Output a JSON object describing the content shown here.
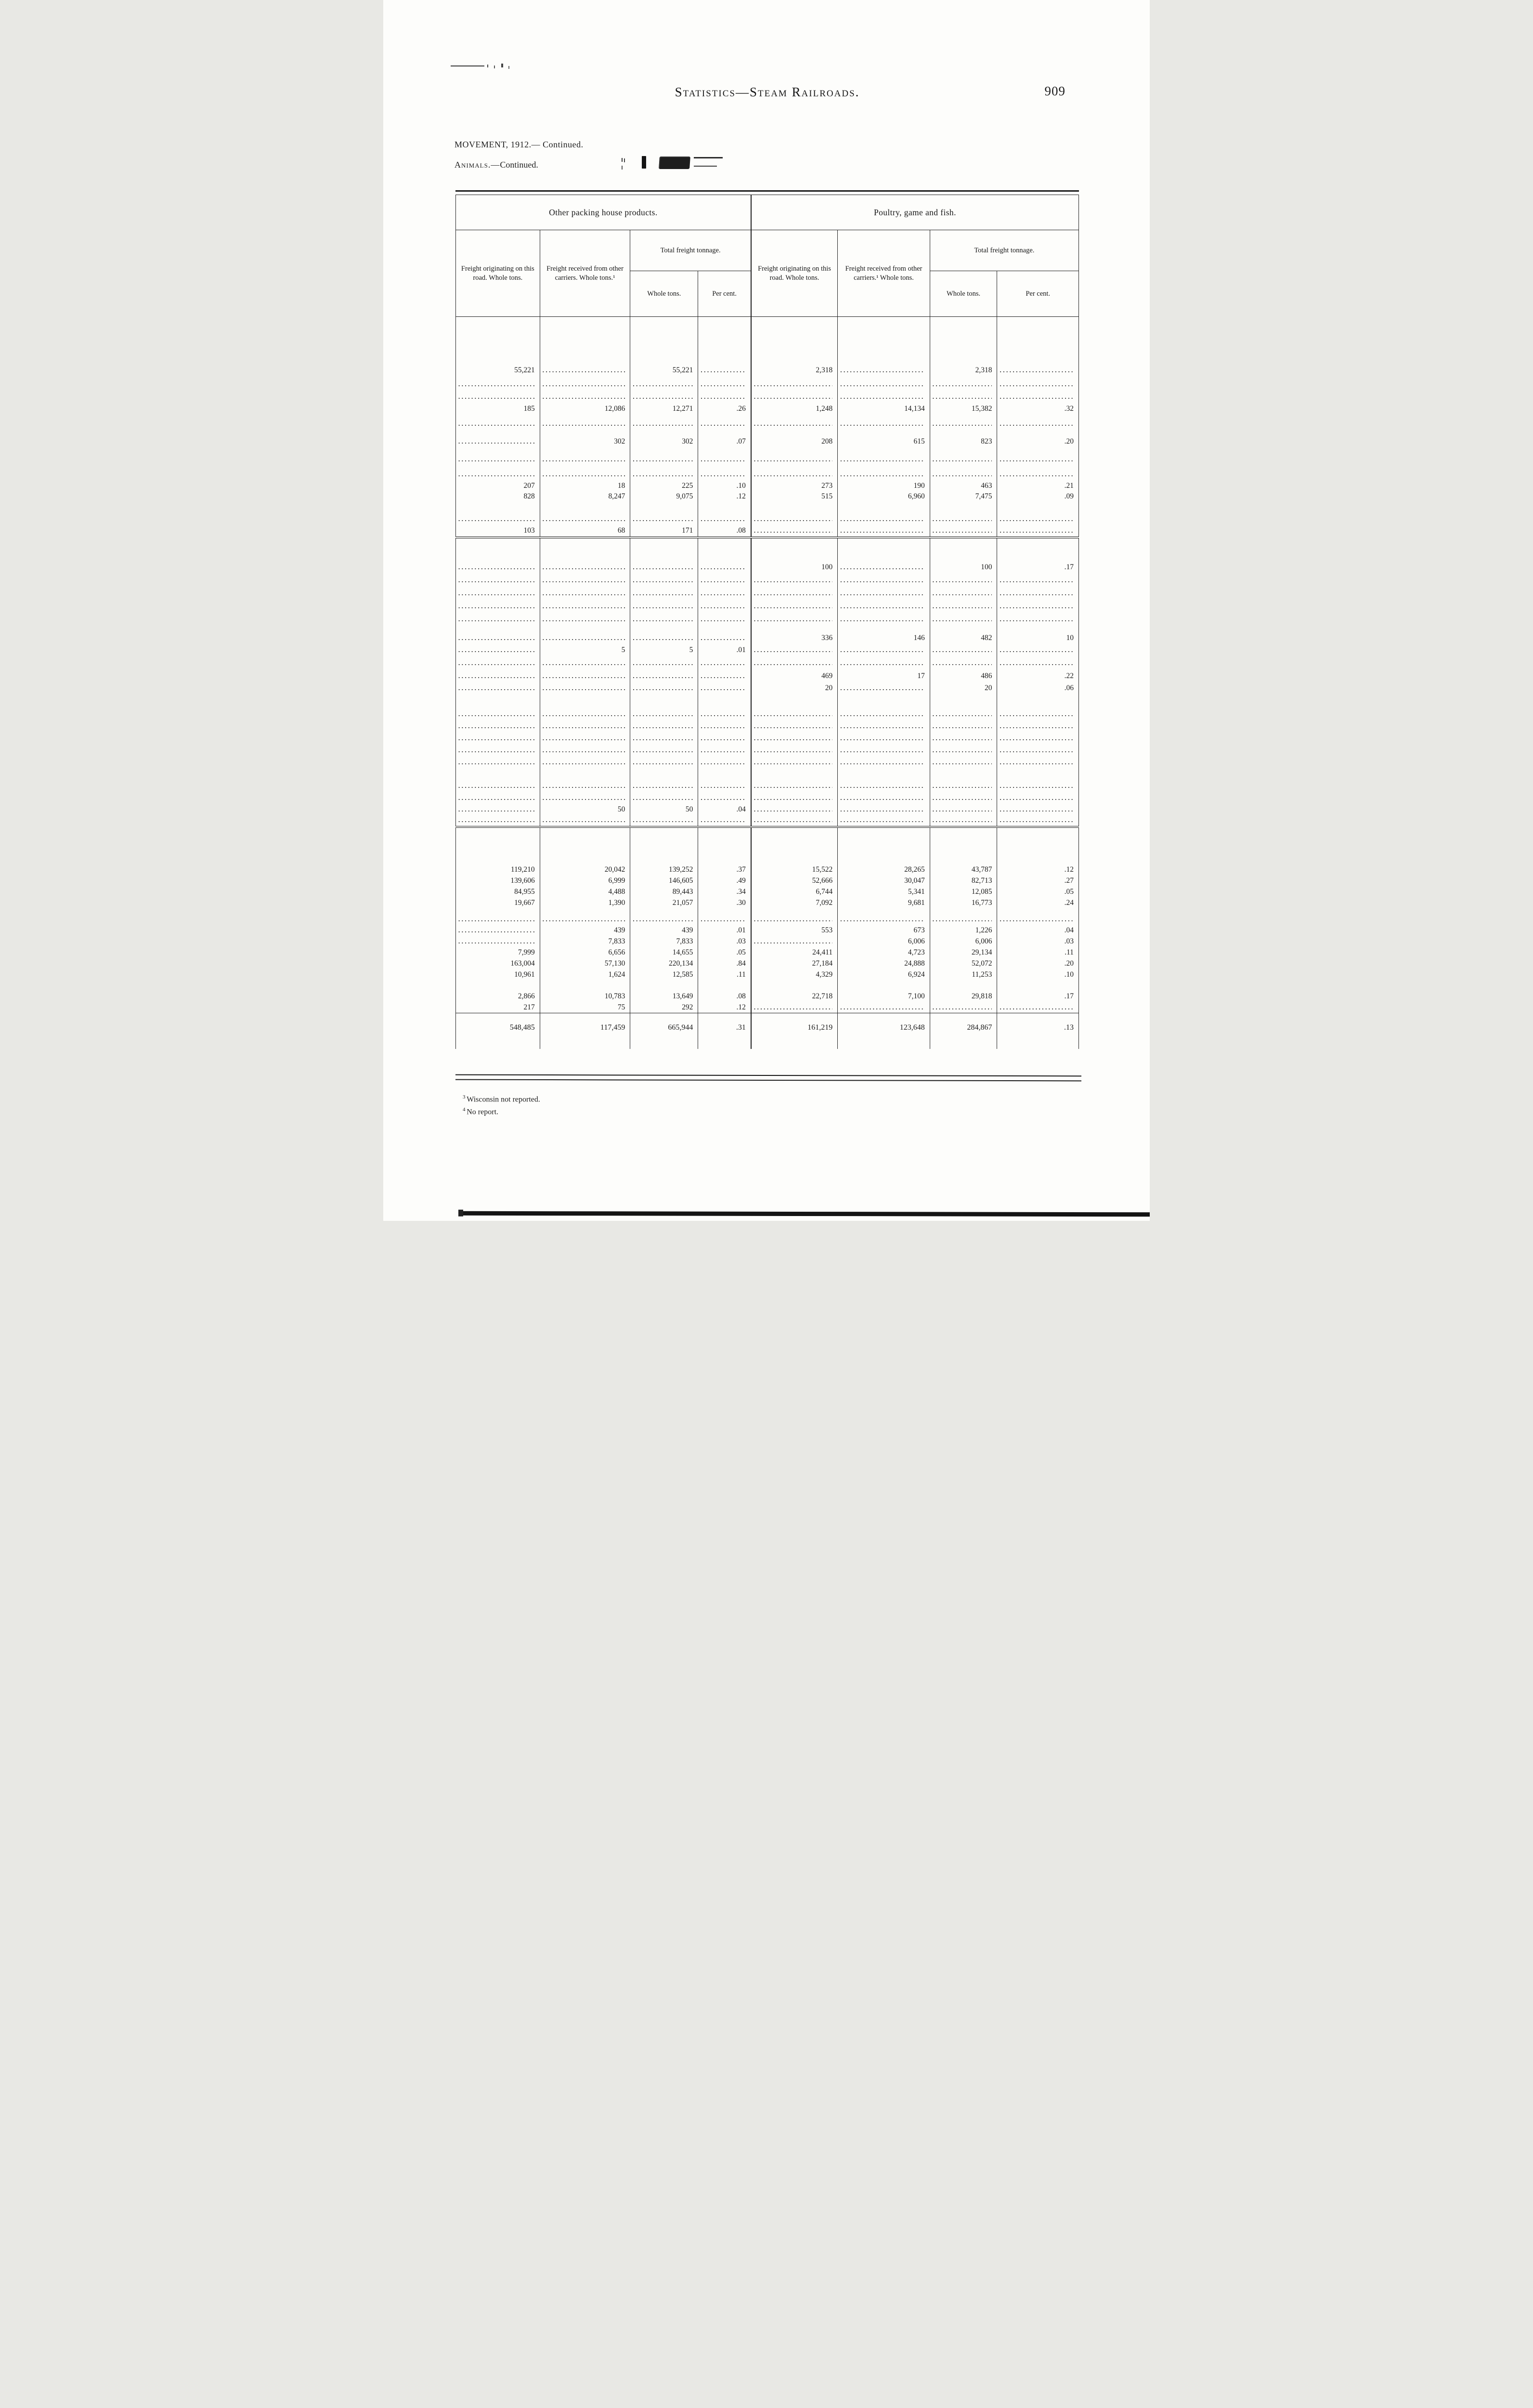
{
  "page": {
    "header_title": "Statistics—Steam Railroads.",
    "page_number": "909",
    "subtitle1_prefix": "MOVEMENT, 1912.—",
    "subtitle1_suffix": " Continued.",
    "subtitle2_prefix": "Animals.—",
    "subtitle2_suffix": "Continued.",
    "footnotes": [
      {
        "marker": "3",
        "text": "Wisconsin not reported."
      },
      {
        "marker": "4",
        "text": "No report."
      }
    ]
  },
  "table": {
    "group_left_title": "Other packing house products.",
    "group_right_title": "Poultry, game and fish.",
    "columns": {
      "left_originating": "Freight originating on this road. Whole tons.",
      "left_received": "Freight received from other carriers. Whole tons.¹",
      "left_total": "Total freight tonnage.",
      "left_whole": "Whole tons.",
      "left_percent": "Per cent.",
      "right_originating": "Freight originating on this road. Whole tons.",
      "right_received": "Freight received from other carriers.¹ Whole tons.",
      "right_total": "Total freight tonnage.",
      "right_whole": "Whole tons.",
      "right_percent": "Per cent."
    },
    "dots_marker": "...",
    "sections": [
      {
        "rows": [
          {
            "spacer": 96
          },
          {
            "h": 30,
            "cells": [
              "55,221",
              "...",
              "55,221",
              "...",
              "2,318",
              "...",
              "2,318",
              "..."
            ]
          },
          {
            "h": 28,
            "cells": [
              "...",
              "...",
              "...",
              "...",
              "...",
              "...",
              "...",
              "..."
            ]
          },
          {
            "h": 24,
            "cells": [
              "...",
              "...",
              "...",
              "...",
              "...",
              "...",
              "...",
              "..."
            ]
          },
          {
            "h": 26,
            "cells": [
              "185",
              "12,086",
              "12,271",
              ".26",
              "1,248",
              "14,134",
              "15,382",
              ".32"
            ]
          },
          {
            "h": 36,
            "cells": [
              "...",
              "...",
              "...",
              "...",
              "...",
              "...",
              "...",
              "..."
            ]
          },
          {
            "h": 38,
            "cells": [
              "...",
              "302",
              "302",
              ".07",
              "208",
              "615",
              "823",
              ".20"
            ]
          },
          {
            "h": 36,
            "cells": [
              "...",
              "...",
              "...",
              "...",
              "...",
              "...",
              "...",
              "..."
            ]
          },
          {
            "h": 27,
            "cells": [
              "...",
              "...",
              "...",
              "...",
              "...",
              "...",
              "...",
              "..."
            ]
          },
          {
            "h": 21,
            "cells": [
              "207",
              "18",
              "225",
              ".10",
              "273",
              "190",
              "463",
              ".21"
            ]
          },
          {
            "h": 22,
            "cells": [
              "828",
              "8,247",
              "9,075",
              ".12",
              "515",
              "6,960",
              "7,475",
              ".09"
            ]
          },
          {
            "spacer": 24
          },
          {
            "h": 25,
            "cells": [
              "...",
              "...",
              "...",
              "...",
              "...",
              "...",
              "...",
              "..."
            ]
          },
          {
            "h": 25,
            "cells": [
              "103",
              "68",
              "171",
              ".08",
              "...",
              "...",
              "...",
              "..."
            ]
          }
        ]
      },
      {
        "rows": [
          {
            "spacer": 22,
            "rule": "double"
          },
          {
            "spacer": 26
          },
          {
            "h": 28,
            "cells": [
              "...",
              "...",
              "...",
              "...",
              "100",
              "...",
              "100",
              ".17"
            ]
          },
          {
            "h": 27,
            "cells": [
              "...",
              "...",
              "...",
              "...",
              "...",
              "...",
              "...",
              "..."
            ]
          },
          {
            "h": 27,
            "cells": [
              "...",
              "...",
              "...",
              "...",
              "...",
              "...",
              "...",
              "..."
            ]
          },
          {
            "h": 27,
            "cells": [
              "...",
              "...",
              "...",
              "...",
              "...",
              "...",
              "...",
              "..."
            ]
          },
          {
            "h": 27,
            "cells": [
              "...",
              "...",
              "...",
              "...",
              "...",
              "...",
              "...",
              "..."
            ]
          },
          {
            "spacer": 12
          },
          {
            "h": 26,
            "cells": [
              "...",
              "...",
              "...",
              "...",
              "336",
              "146",
              "482",
              "10"
            ]
          },
          {
            "h": 24,
            "cells": [
              "...",
              "5",
              "5",
              ".01",
              "...",
              "...",
              "...",
              "..."
            ]
          },
          {
            "h": 30,
            "cells": [
              "...",
              "...",
              "...",
              "...",
              "...",
              "...",
              "...",
              "..."
            ]
          },
          {
            "h": 25,
            "cells": [
              "...",
              "...",
              "...",
              "...",
              "469",
              "17",
              "486",
              ".22"
            ]
          },
          {
            "h": 24,
            "cells": [
              "...",
              "...",
              "...",
              "...",
              "20",
              "...",
              "20",
              ".06"
            ]
          },
          {
            "spacer": 30
          },
          {
            "h": 25,
            "cells": [
              "...",
              "...",
              "...",
              "...",
              "...",
              "...",
              "...",
              "..."
            ]
          },
          {
            "h": 25,
            "cells": [
              "...",
              "...",
              "...",
              "...",
              "...",
              "...",
              "...",
              "..."
            ]
          },
          {
            "h": 25,
            "cells": [
              "...",
              "...",
              "...",
              "...",
              "...",
              "...",
              "...",
              "..."
            ]
          },
          {
            "h": 25,
            "cells": [
              "...",
              "...",
              "...",
              "...",
              "...",
              "...",
              "...",
              "..."
            ]
          },
          {
            "h": 25,
            "cells": [
              "...",
              "...",
              "...",
              "...",
              "...",
              "...",
              "...",
              "..."
            ]
          },
          {
            "spacer": 24
          },
          {
            "h": 25,
            "cells": [
              "...",
              "...",
              "...",
              "...",
              "...",
              "...",
              "...",
              "..."
            ]
          },
          {
            "h": 25,
            "cells": [
              "...",
              "...",
              "...",
              "...",
              "...",
              "...",
              "...",
              "..."
            ]
          },
          {
            "h": 22,
            "cells": [
              "...",
              "50",
              "50",
              ".04",
              "...",
              "...",
              "...",
              "..."
            ]
          },
          {
            "h": 25,
            "cells": [
              "...",
              "...",
              "...",
              "...",
              "...",
              "...",
              "...",
              "..."
            ]
          }
        ]
      },
      {
        "rows": [
          {
            "spacer": 20,
            "rule": "double"
          },
          {
            "spacer": 58
          },
          {
            "h": 23,
            "cells": [
              "119,210",
              "20,042",
              "139,252",
              ".37",
              "15,522",
              "28,265",
              "43,787",
              ".12"
            ]
          },
          {
            "h": 23,
            "cells": [
              "139,606",
              "6,999",
              "146,605",
              ".49",
              "52,666",
              "30,047",
              "82,713",
              ".27"
            ]
          },
          {
            "h": 23,
            "cells": [
              "84,955",
              "4,488",
              "89,443",
              ".34",
              "6,744",
              "5,341",
              "12,085",
              ".05"
            ]
          },
          {
            "h": 23,
            "cells": [
              "19,667",
              "1,390",
              "21,057",
              ".30",
              "7,092",
              "9,681",
              "16,773",
              ".24"
            ]
          },
          {
            "spacer": 10
          },
          {
            "h": 24,
            "cells": [
              "...",
              "...",
              "...",
              "...",
              "...",
              "...",
              "...",
              "..."
            ]
          },
          {
            "h": 23,
            "cells": [
              "...",
              "439",
              "439",
              ".01",
              "553",
              "673",
              "1,226",
              ".04"
            ]
          },
          {
            "h": 23,
            "cells": [
              "...",
              "7,833",
              "7,833",
              ".03",
              "...",
              "6,006",
              "6,006",
              ".03"
            ]
          },
          {
            "h": 23,
            "cells": [
              "7,999",
              "6,656",
              "14,655",
              ".05",
              "24,411",
              "4,723",
              "29,134",
              ".11"
            ]
          },
          {
            "h": 23,
            "cells": [
              "163,004",
              "57,130",
              "220,134",
              ".84",
              "27,184",
              "24,888",
              "52,072",
              ".20"
            ]
          },
          {
            "h": 23,
            "cells": [
              "10,961",
              "1,624",
              "12,585",
              ".11",
              "4,329",
              "6,924",
              "11,253",
              ".10"
            ]
          },
          {
            "spacer": 22
          },
          {
            "h": 23,
            "cells": [
              "2,866",
              "10,783",
              "13,649",
              ".08",
              "22,718",
              "7,100",
              "29,818",
              ".17"
            ]
          },
          {
            "h": 23,
            "cells": [
              "217",
              "75",
              "292",
              ".12",
              "...",
              "...",
              "...",
              "..."
            ]
          },
          {
            "spacer": 14,
            "rule": "single"
          },
          {
            "h": 32,
            "total": true,
            "cells": [
              "548,485",
              "117,459",
              "665,944",
              ".31",
              "161,219",
              "123,648",
              "284,867",
              ".13"
            ]
          },
          {
            "spacer": 28
          }
        ]
      }
    ]
  }
}
